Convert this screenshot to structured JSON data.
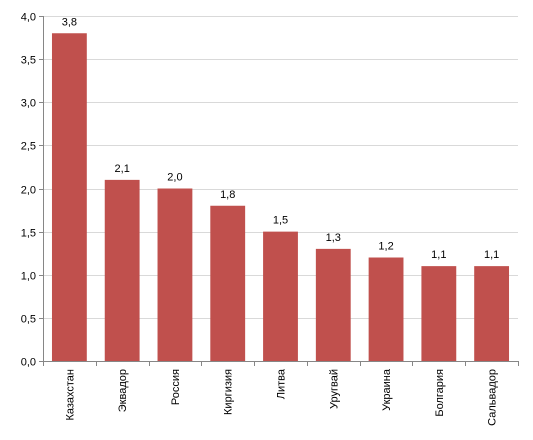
{
  "chart_data": {
    "type": "bar",
    "title": "",
    "xlabel": "",
    "ylabel": "",
    "categories": [
      "Казахстан",
      "Эквадор",
      "Россия",
      "Киргизия",
      "Литва",
      "Уругвай",
      "Украина",
      "Болгария",
      "Сальвадор"
    ],
    "values": [
      3.8,
      2.1,
      2.0,
      1.8,
      1.5,
      1.3,
      1.2,
      1.1,
      1.1
    ],
    "value_labels": [
      "3,8",
      "2,1",
      "2,0",
      "1,8",
      "1,5",
      "1,3",
      "1,2",
      "1,1",
      "1,1"
    ],
    "ylim": [
      0,
      4
    ],
    "yticks": [
      0,
      0.5,
      1,
      1.5,
      2,
      2.5,
      3,
      3.5,
      4
    ],
    "ytick_labels": [
      "0,0",
      "0,5",
      "1,0",
      "1,5",
      "2,0",
      "2,5",
      "3,0",
      "3,5",
      "4,0"
    ],
    "grid": true,
    "legend": "none",
    "colors": {
      "bar": "#c0504d",
      "grid": "#d9d9d9",
      "axis": "#868686"
    }
  }
}
